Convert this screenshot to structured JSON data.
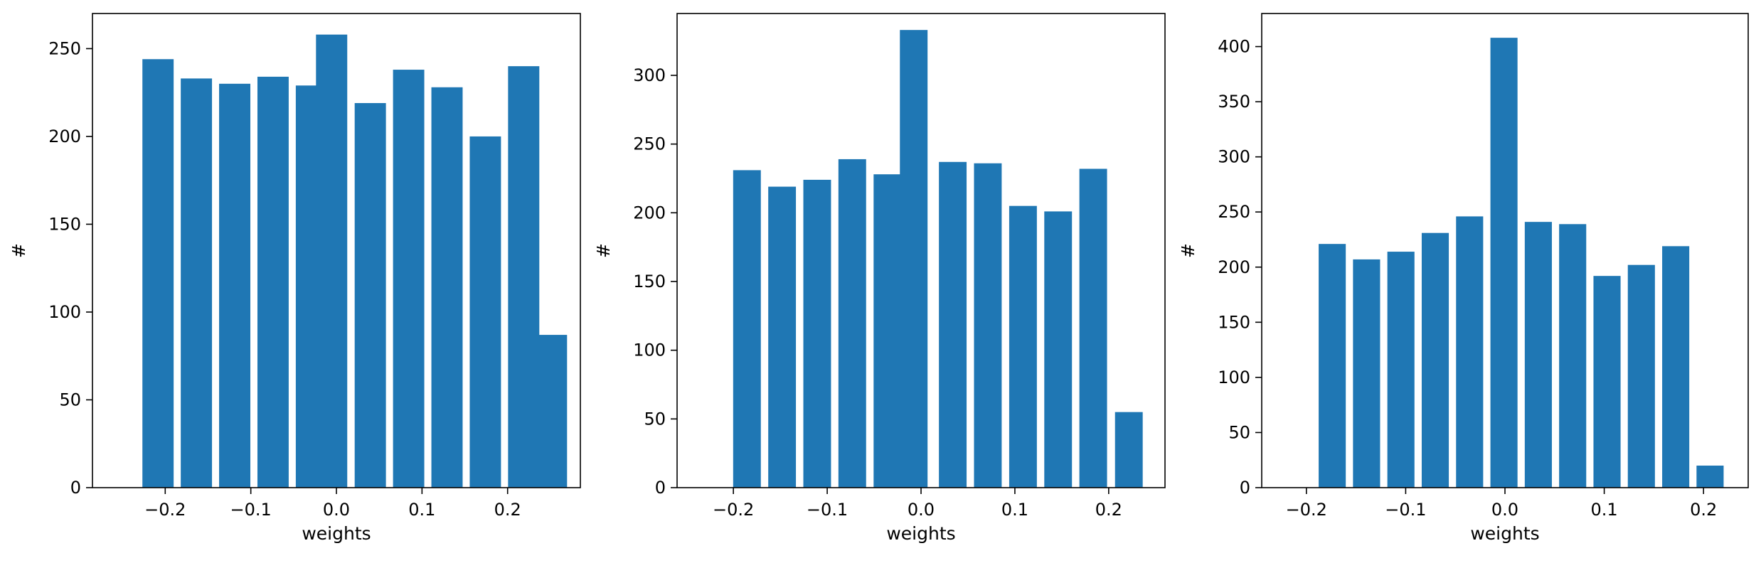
{
  "chart_data": [
    {
      "type": "bar",
      "x": [
        -0.2084,
        -0.1636,
        -0.1188,
        -0.074,
        -0.0292,
        -0.0056,
        0.0396,
        0.0844,
        0.1292,
        0.174,
        0.2188,
        0.2512
      ],
      "values": [
        244,
        233,
        230,
        234,
        229,
        258,
        219,
        238,
        228,
        200,
        240,
        87
      ],
      "bar_width": 0.0365,
      "xlabel": "weights",
      "ylabel": "#",
      "xlim": [
        -0.285,
        0.285
      ],
      "ylim": [
        0,
        270
      ],
      "xticks": [
        -0.2,
        -0.1,
        0.0,
        0.1,
        0.2
      ],
      "xtick_labels": [
        "−0.2",
        "−0.1",
        "0.0",
        "0.1",
        "0.2"
      ],
      "yticks": [
        0,
        50,
        100,
        150,
        200,
        250
      ],
      "ytick_labels": [
        "0",
        "50",
        "100",
        "150",
        "200",
        "250"
      ],
      "grid": false,
      "color": "#1f77b4"
    },
    {
      "type": "bar",
      "x": [
        -0.1855,
        -0.1481,
        -0.1107,
        -0.0733,
        -0.0358,
        -0.0078,
        0.0338,
        0.0712,
        0.1087,
        0.1461,
        0.1835,
        0.2215
      ],
      "values": [
        231,
        219,
        224,
        239,
        228,
        333,
        237,
        236,
        205,
        201,
        232,
        55
      ],
      "bar_width": 0.0295,
      "xlabel": "weights",
      "ylabel": "#",
      "xlim": [
        -0.26,
        0.26
      ],
      "ylim": [
        0,
        345
      ],
      "xticks": [
        -0.2,
        -0.1,
        0.0,
        0.1,
        0.2
      ],
      "xtick_labels": [
        "−0.2",
        "−0.1",
        "0.0",
        "0.1",
        "0.2"
      ],
      "yticks": [
        0,
        50,
        100,
        150,
        200,
        250,
        300
      ],
      "ytick_labels": [
        "0",
        "50",
        "100",
        "150",
        "200",
        "250",
        "300"
      ],
      "grid": false,
      "color": "#1f77b4"
    },
    {
      "type": "bar",
      "x": [
        -0.174,
        -0.1394,
        -0.1048,
        -0.0702,
        -0.0356,
        -0.001,
        0.0336,
        0.0682,
        0.1028,
        0.1374,
        0.172,
        0.2066
      ],
      "values": [
        221,
        207,
        214,
        231,
        246,
        408,
        241,
        239,
        192,
        202,
        219,
        20
      ],
      "bar_width": 0.0273,
      "xlabel": "weights",
      "ylabel": "#",
      "xlim": [
        -0.245,
        0.245
      ],
      "ylim": [
        0,
        430
      ],
      "xticks": [
        -0.2,
        -0.1,
        0.0,
        0.1,
        0.2
      ],
      "xtick_labels": [
        "−0.2",
        "−0.1",
        "0.0",
        "0.1",
        "0.2"
      ],
      "yticks": [
        0,
        50,
        100,
        150,
        200,
        250,
        300,
        350,
        400
      ],
      "ytick_labels": [
        "0",
        "50",
        "100",
        "150",
        "200",
        "250",
        "300",
        "350",
        "400"
      ],
      "grid": false,
      "color": "#1f77b4"
    }
  ]
}
